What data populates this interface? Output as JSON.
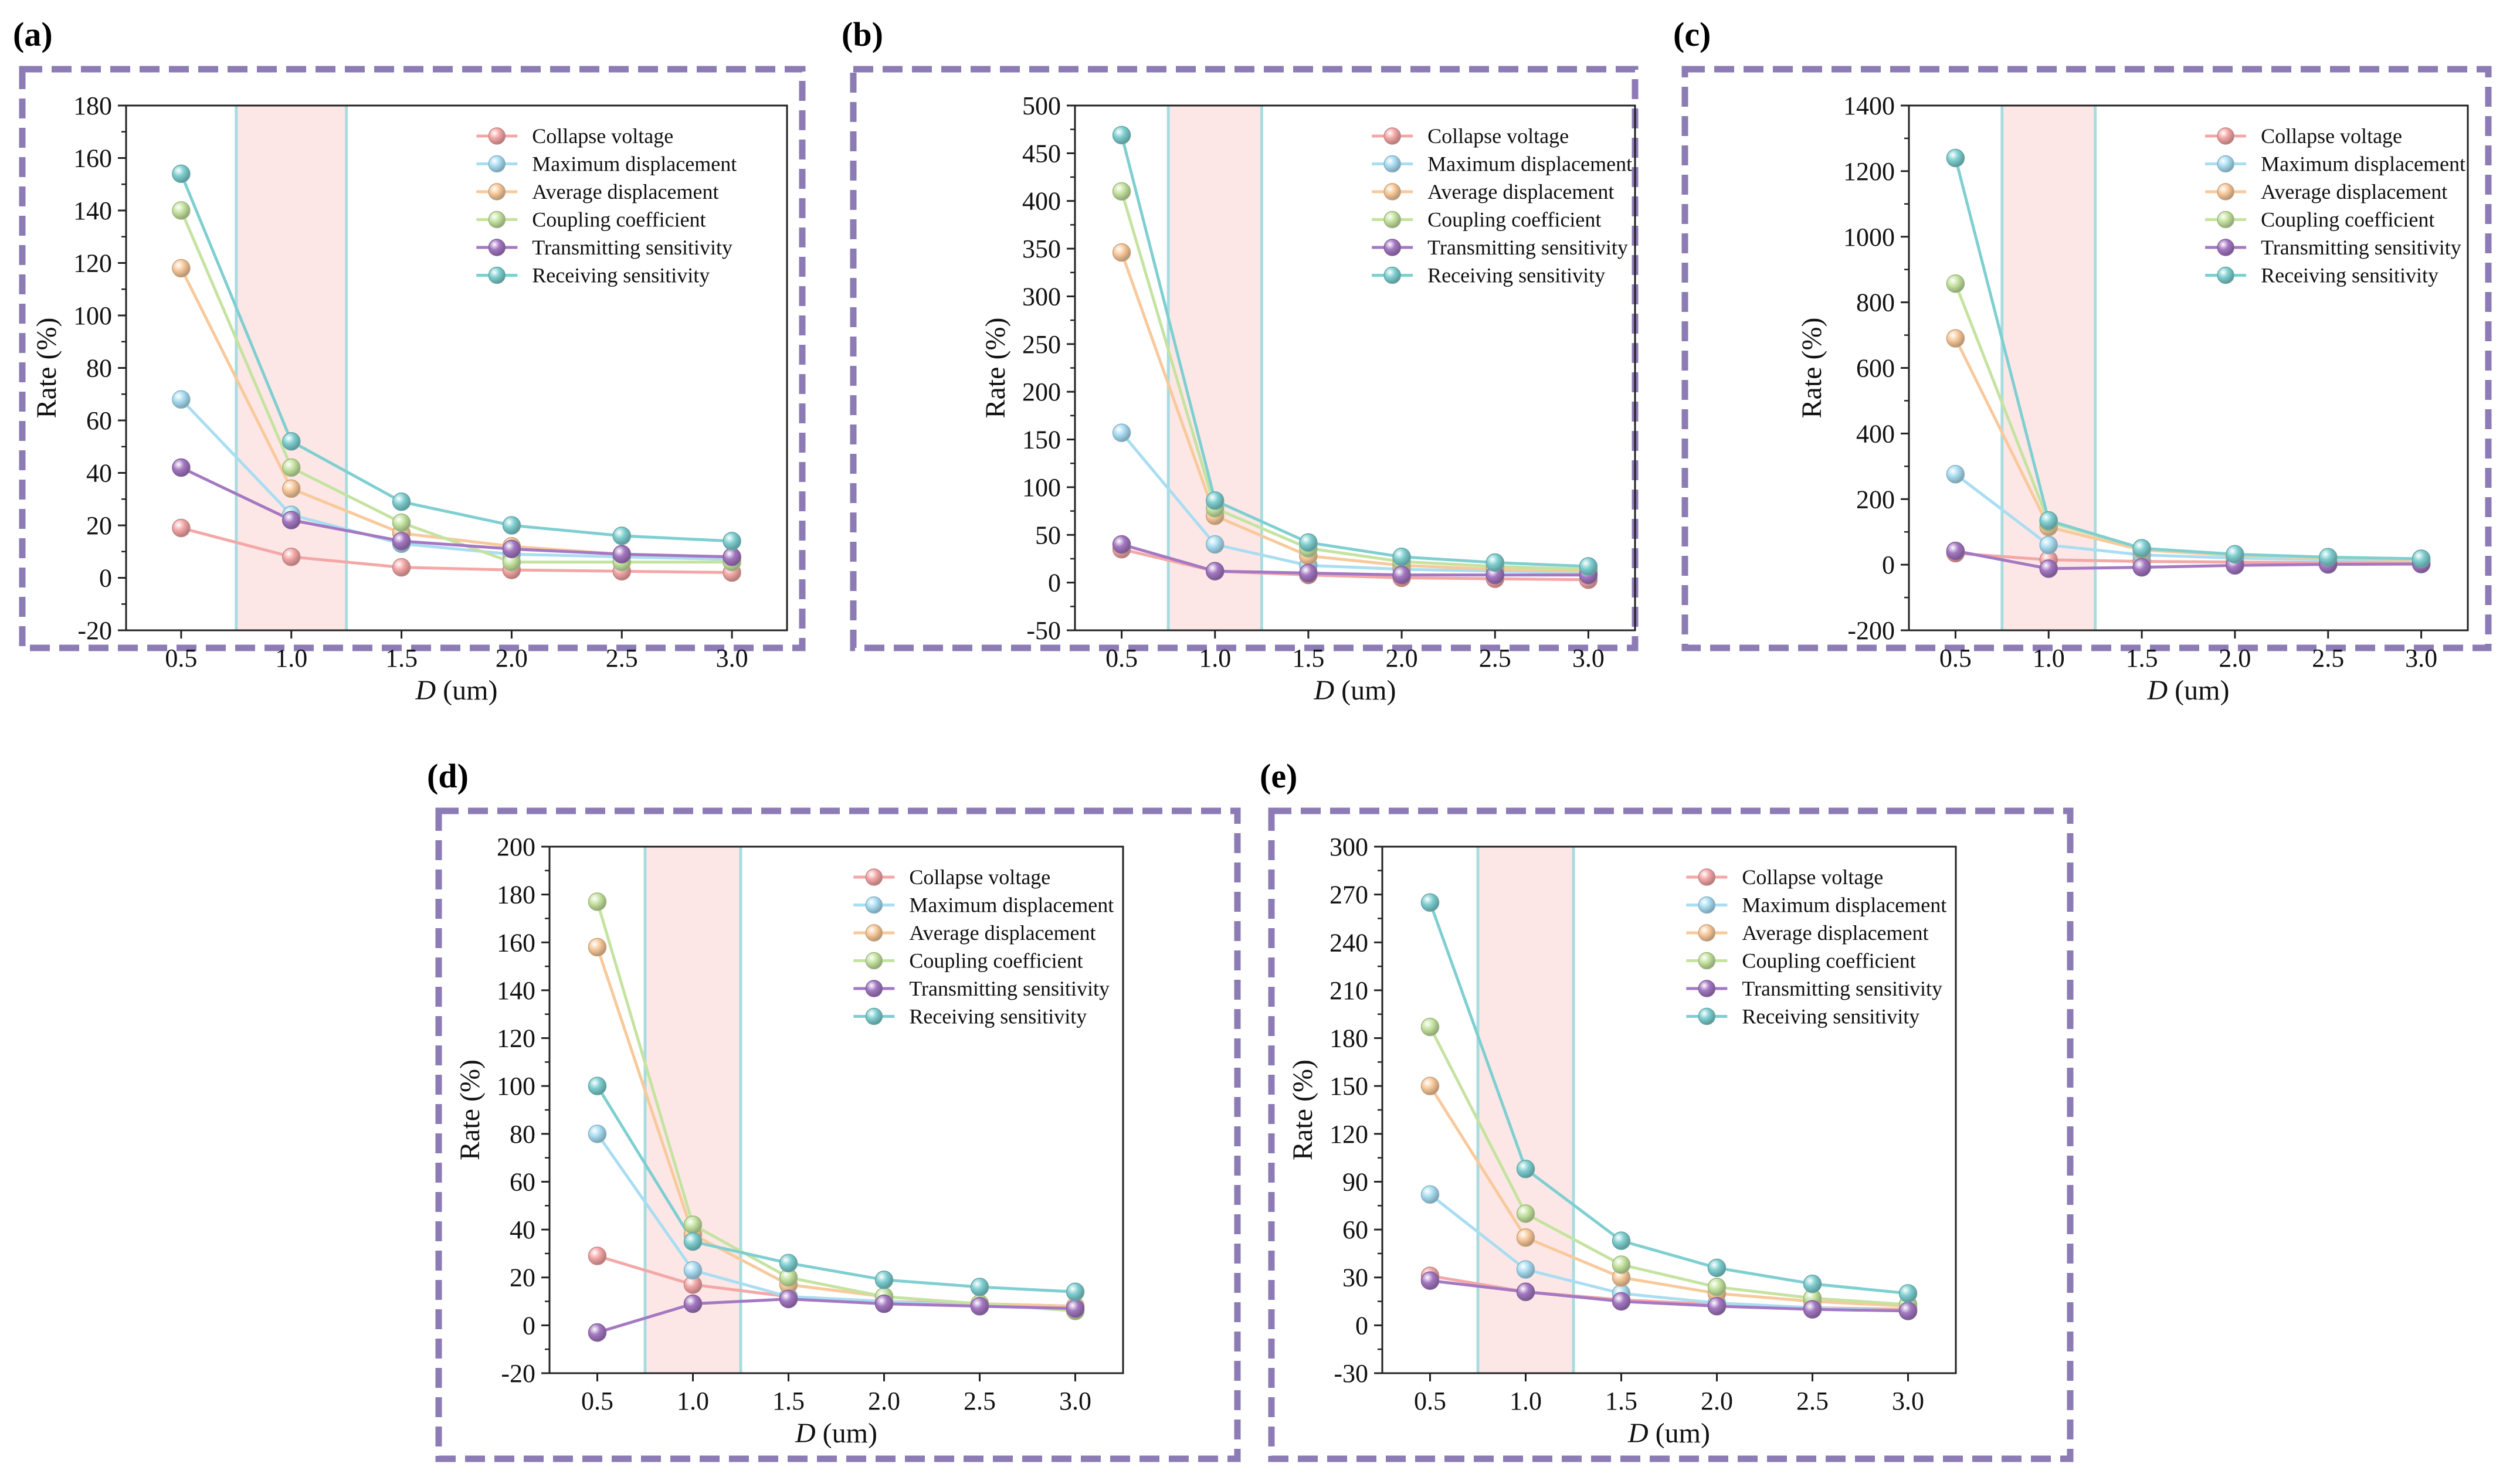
{
  "figure": {
    "legend": [
      {
        "name": "Collapse voltage",
        "color": "#F4A7A7"
      },
      {
        "name": "Maximum displacement",
        "color": "#A9DDF2"
      },
      {
        "name": "Average displacement",
        "color": "#F8C99B"
      },
      {
        "name": "Coupling coefficient",
        "color": "#C5E3A0"
      },
      {
        "name": "Transmitting sensitivity",
        "color": "#A478C2"
      },
      {
        "name": "Receiving sensitivity",
        "color": "#7FCFD1"
      }
    ],
    "highlight_band_color": "#FDE7E6",
    "frame_color": "#8C7BB5"
  },
  "chart_data": [
    {
      "panel": "(a)",
      "type": "line",
      "xlabel_italic": "D",
      "xlabel_unit": "(um)",
      "ylabel": "Rate (%)",
      "x": [
        0.5,
        1.0,
        1.5,
        2.0,
        2.5,
        3.0
      ],
      "x_ticks": [
        "0.5",
        "1.0",
        "1.5",
        "2.0",
        "2.5",
        "3.0"
      ],
      "xlim": [
        0.25,
        3.25
      ],
      "y_ticks": [
        -20,
        0,
        20,
        40,
        60,
        80,
        100,
        120,
        140,
        160,
        180
      ],
      "ylim": [
        -20,
        180
      ],
      "highlight_x": [
        0.75,
        1.25
      ],
      "series": [
        {
          "name": "Collapse voltage",
          "values": [
            19,
            8,
            4,
            3,
            2.5,
            2
          ]
        },
        {
          "name": "Maximum displacement",
          "values": [
            68,
            24,
            13,
            9,
            8,
            7
          ]
        },
        {
          "name": "Average displacement",
          "values": [
            118,
            34,
            17,
            12,
            9,
            8
          ]
        },
        {
          "name": "Coupling coefficient",
          "values": [
            140,
            42,
            21,
            6,
            6,
            6
          ]
        },
        {
          "name": "Transmitting sensitivity",
          "values": [
            42,
            22,
            14,
            11,
            9,
            8
          ]
        },
        {
          "name": "Receiving sensitivity",
          "values": [
            154,
            52,
            29,
            20,
            16,
            14
          ]
        }
      ]
    },
    {
      "panel": "(b)",
      "type": "line",
      "xlabel_italic": "D",
      "xlabel_unit": "(um)",
      "ylabel": "Rate (%)",
      "x": [
        0.5,
        1.0,
        1.5,
        2.0,
        2.5,
        3.0
      ],
      "x_ticks": [
        "0.5",
        "1.0",
        "1.5",
        "2.0",
        "2.5",
        "3.0"
      ],
      "xlim": [
        0.25,
        3.25
      ],
      "y_ticks": [
        -50,
        0,
        50,
        100,
        150,
        200,
        250,
        300,
        350,
        400,
        450,
        500
      ],
      "ylim": [
        -50,
        500
      ],
      "highlight_x": [
        0.75,
        1.25
      ],
      "series": [
        {
          "name": "Collapse voltage",
          "values": [
            35,
            12,
            8,
            5,
            4,
            3
          ]
        },
        {
          "name": "Maximum displacement",
          "values": [
            157,
            40,
            18,
            14,
            12,
            10
          ]
        },
        {
          "name": "Average displacement",
          "values": [
            346,
            70,
            28,
            18,
            14,
            12
          ]
        },
        {
          "name": "Coupling coefficient",
          "values": [
            410,
            78,
            36,
            22,
            17,
            14
          ]
        },
        {
          "name": "Transmitting sensitivity",
          "values": [
            40,
            12,
            10,
            8,
            8,
            8
          ]
        },
        {
          "name": "Receiving sensitivity",
          "values": [
            469,
            86,
            42,
            27,
            21,
            17
          ]
        }
      ]
    },
    {
      "panel": "(c)",
      "type": "line",
      "xlabel_italic": "D",
      "xlabel_unit": "(um)",
      "ylabel": "Rate (%)",
      "x": [
        0.5,
        1.0,
        1.5,
        2.0,
        2.5,
        3.0
      ],
      "x_ticks": [
        "0.5",
        "1.0",
        "1.5",
        "2.0",
        "2.5",
        "3.0"
      ],
      "xlim": [
        0.25,
        3.25
      ],
      "y_ticks": [
        -200,
        0,
        200,
        400,
        600,
        800,
        1000,
        1200,
        1400
      ],
      "ylim": [
        -200,
        1400
      ],
      "highlight_x": [
        0.75,
        1.25
      ],
      "series": [
        {
          "name": "Collapse voltage",
          "values": [
            35,
            15,
            10,
            8,
            6,
            5
          ]
        },
        {
          "name": "Maximum displacement",
          "values": [
            276,
            60,
            30,
            20,
            15,
            12
          ]
        },
        {
          "name": "Average displacement",
          "values": [
            690,
            115,
            45,
            28,
            20,
            15
          ]
        },
        {
          "name": "Coupling coefficient",
          "values": [
            857,
            130,
            50,
            30,
            22,
            18
          ]
        },
        {
          "name": "Transmitting sensitivity",
          "values": [
            42,
            -12,
            -8,
            -2,
            1,
            2
          ]
        },
        {
          "name": "Receiving sensitivity",
          "values": [
            1240,
            135,
            50,
            32,
            23,
            18
          ]
        }
      ]
    },
    {
      "panel": "(d)",
      "type": "line",
      "xlabel_italic": "D",
      "xlabel_unit": "(um)",
      "ylabel": "Rate (%)",
      "x": [
        0.5,
        1.0,
        1.5,
        2.0,
        2.5,
        3.0
      ],
      "x_ticks": [
        "0.5",
        "1.0",
        "1.5",
        "2.0",
        "2.5",
        "3.0"
      ],
      "xlim": [
        0.25,
        3.25
      ],
      "y_ticks": [
        -20,
        0,
        20,
        40,
        60,
        80,
        100,
        120,
        140,
        160,
        180,
        200
      ],
      "ylim": [
        -20,
        200
      ],
      "highlight_x": [
        0.75,
        1.25
      ],
      "series": [
        {
          "name": "Collapse voltage",
          "values": [
            29,
            17,
            12,
            10,
            9,
            8
          ]
        },
        {
          "name": "Maximum displacement",
          "values": [
            80,
            23,
            12,
            10,
            8,
            7
          ]
        },
        {
          "name": "Average displacement",
          "values": [
            158,
            38,
            17,
            12,
            9,
            8
          ]
        },
        {
          "name": "Coupling coefficient",
          "values": [
            177,
            42,
            20,
            12,
            9,
            6
          ]
        },
        {
          "name": "Transmitting sensitivity",
          "values": [
            -3,
            9,
            11,
            9,
            8,
            7
          ]
        },
        {
          "name": "Receiving sensitivity",
          "values": [
            100,
            35,
            26,
            19,
            16,
            14
          ]
        }
      ]
    },
    {
      "panel": "(e)",
      "type": "line",
      "xlabel_italic": "D",
      "xlabel_unit": "(um)",
      "ylabel": "Rate (%)",
      "x": [
        0.5,
        1.0,
        1.5,
        2.0,
        2.5,
        3.0
      ],
      "x_ticks": [
        "0.5",
        "1.0",
        "1.5",
        "2.0",
        "2.5",
        "3.0"
      ],
      "xlim": [
        0.25,
        3.25
      ],
      "y_ticks": [
        -30,
        0,
        30,
        60,
        90,
        120,
        150,
        180,
        210,
        240,
        270,
        300
      ],
      "ylim": [
        -30,
        300
      ],
      "highlight_x": [
        0.75,
        1.25
      ],
      "series": [
        {
          "name": "Collapse voltage",
          "values": [
            31,
            21,
            16,
            13,
            11,
            10
          ]
        },
        {
          "name": "Maximum displacement",
          "values": [
            82,
            35,
            20,
            14,
            11,
            9
          ]
        },
        {
          "name": "Average displacement",
          "values": [
            150,
            55,
            30,
            20,
            15,
            12
          ]
        },
        {
          "name": "Coupling coefficient",
          "values": [
            187,
            70,
            38,
            24,
            17,
            13
          ]
        },
        {
          "name": "Transmitting sensitivity",
          "values": [
            28,
            21,
            15,
            12,
            10,
            9
          ]
        },
        {
          "name": "Receiving sensitivity",
          "values": [
            265,
            98,
            53,
            36,
            26,
            20
          ]
        }
      ]
    }
  ]
}
